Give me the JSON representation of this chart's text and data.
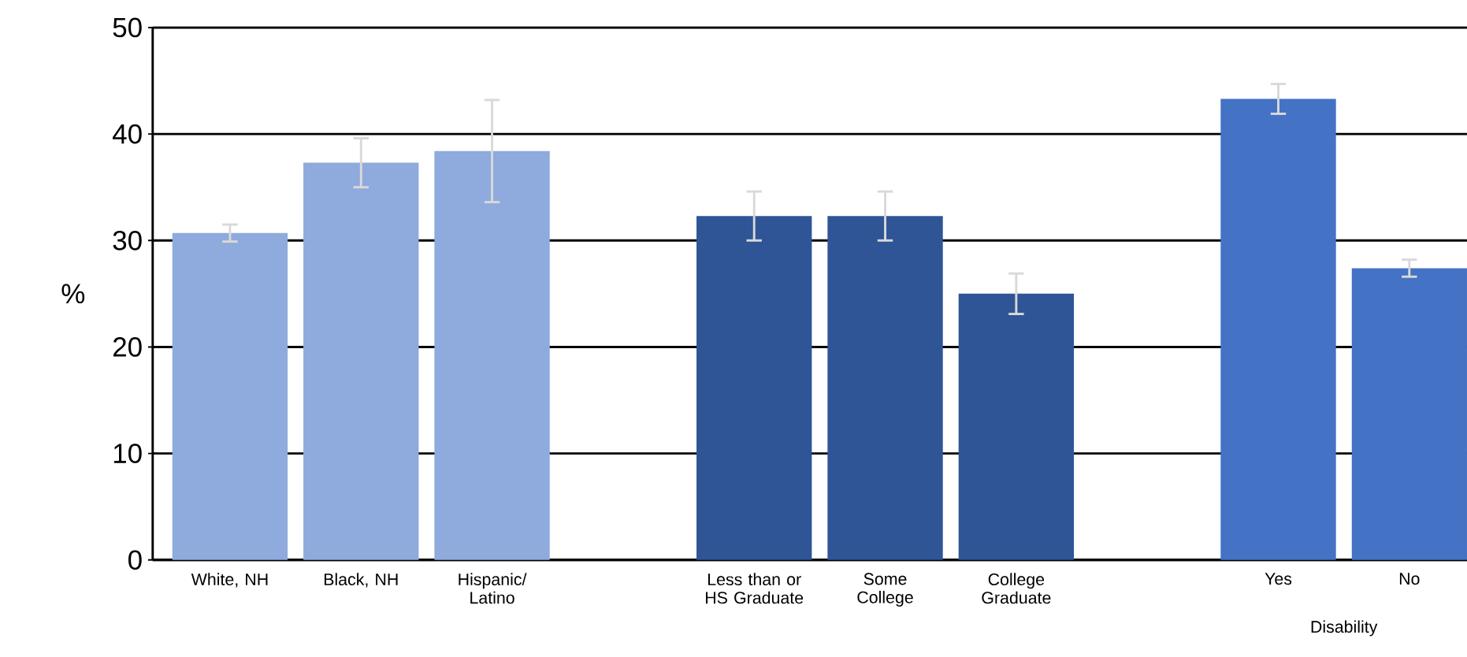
{
  "chart_data": {
    "type": "bar",
    "ylabel": "%",
    "categories": [
      "White, NH",
      "Black, NH",
      "Hispanic/ Latino",
      null,
      "Less than or HS Graduate",
      "Some College",
      "College Graduate",
      null,
      "Yes",
      "No"
    ],
    "values": [
      30.7,
      37.3,
      38.4,
      null,
      32.3,
      32.3,
      25.0,
      null,
      43.3,
      27.4
    ],
    "errors": [
      0.8,
      2.3,
      4.8,
      null,
      2.3,
      2.3,
      1.9,
      null,
      1.4,
      0.8
    ],
    "colors": [
      "#8faadc",
      "#8faadc",
      "#8faadc",
      "#8faadc",
      "#2f5597",
      "#2f5597",
      "#2f5597",
      "#4472c4",
      "#4472c4",
      "#4472c4"
    ],
    "ylim": [
      0,
      50
    ],
    "yticks": [
      0,
      10,
      20,
      30,
      40,
      50
    ],
    "grid": "y",
    "annotations": [
      "Disability"
    ]
  }
}
